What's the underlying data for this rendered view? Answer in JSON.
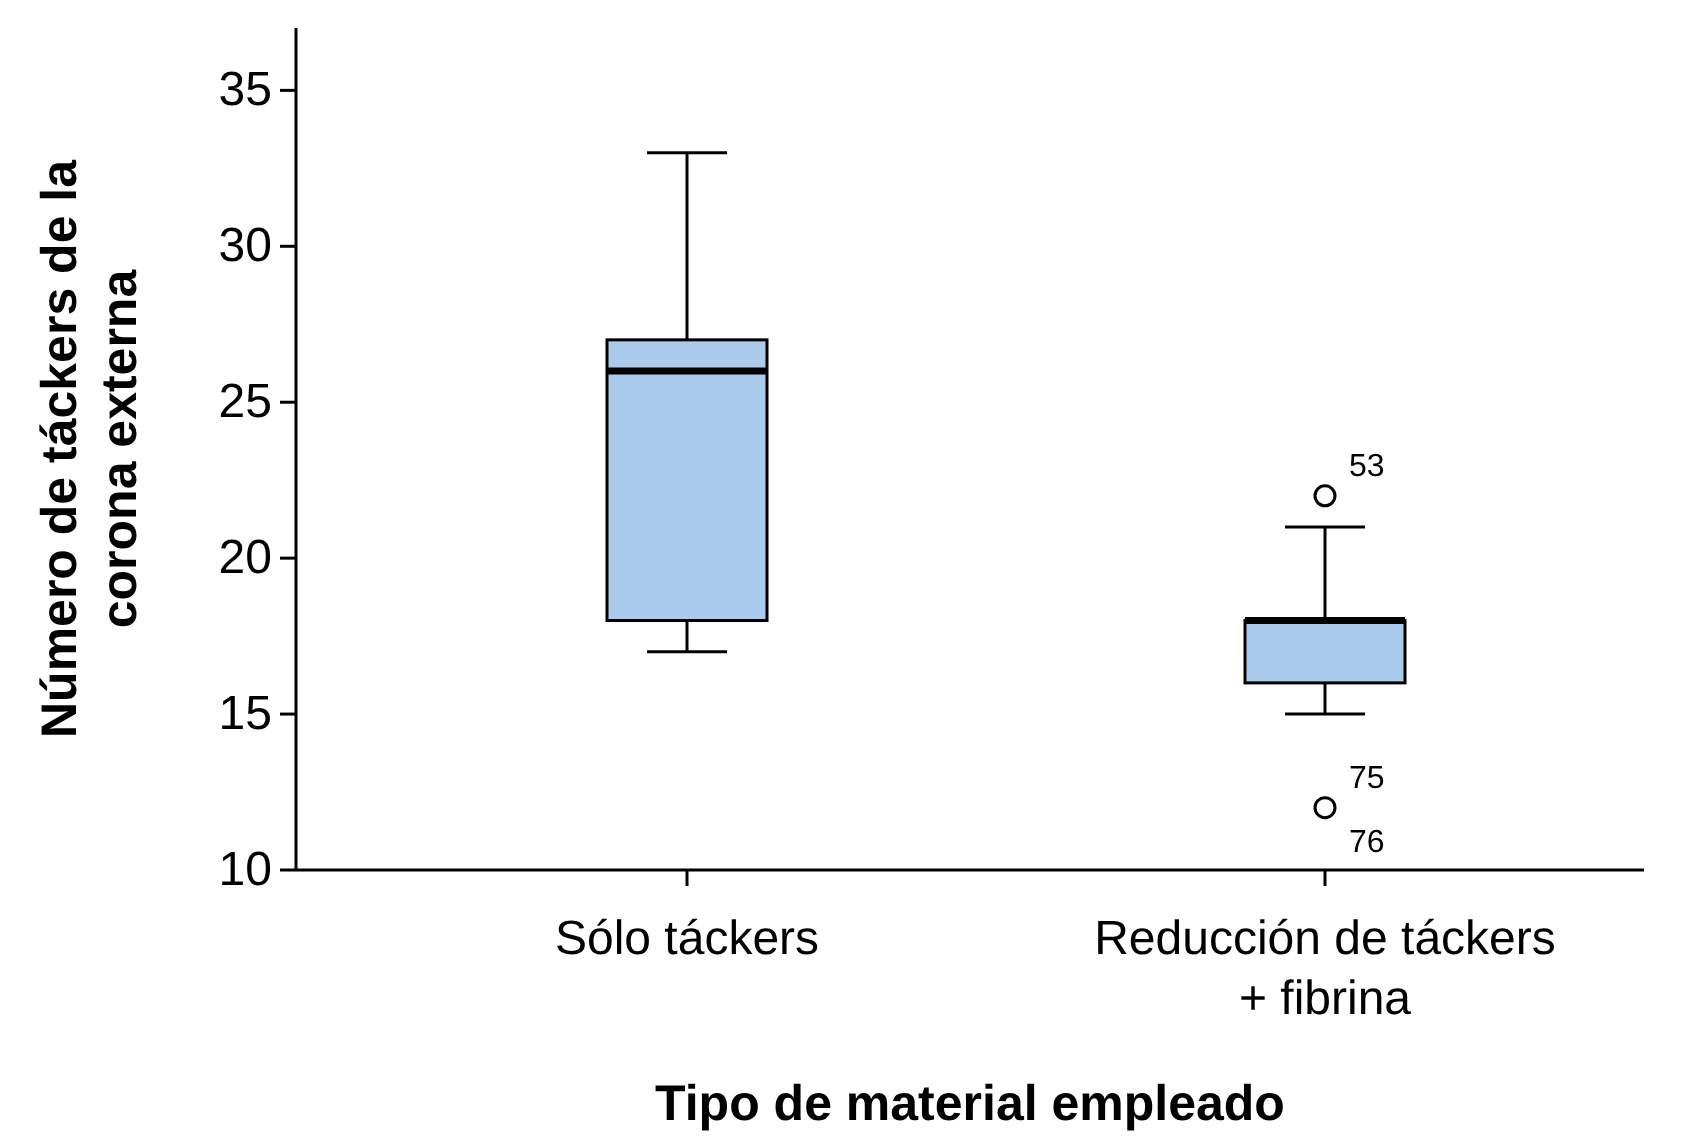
{
  "chart_data": {
    "type": "box",
    "xlabel": "Tipo de material empleado",
    "ylabel": "Número de táckers de la\ncorona externa",
    "categories": [
      "Sólo táckers",
      "Reducción de táckers\n+ fibrina"
    ],
    "boxes": [
      {
        "low": 17,
        "q1": 18,
        "median": 26,
        "q3": 27,
        "high": 33
      },
      {
        "low": 15,
        "q1": 16,
        "median": 18,
        "q3": 18,
        "high": 21,
        "outliers": [
          22,
          12
        ]
      }
    ],
    "color": "#aacbeb",
    "ylim": [
      10,
      37
    ],
    "yticks": [
      10,
      15,
      20,
      25,
      30,
      35
    ],
    "grid": false,
    "annotations": [
      "53",
      "75",
      "76"
    ]
  }
}
